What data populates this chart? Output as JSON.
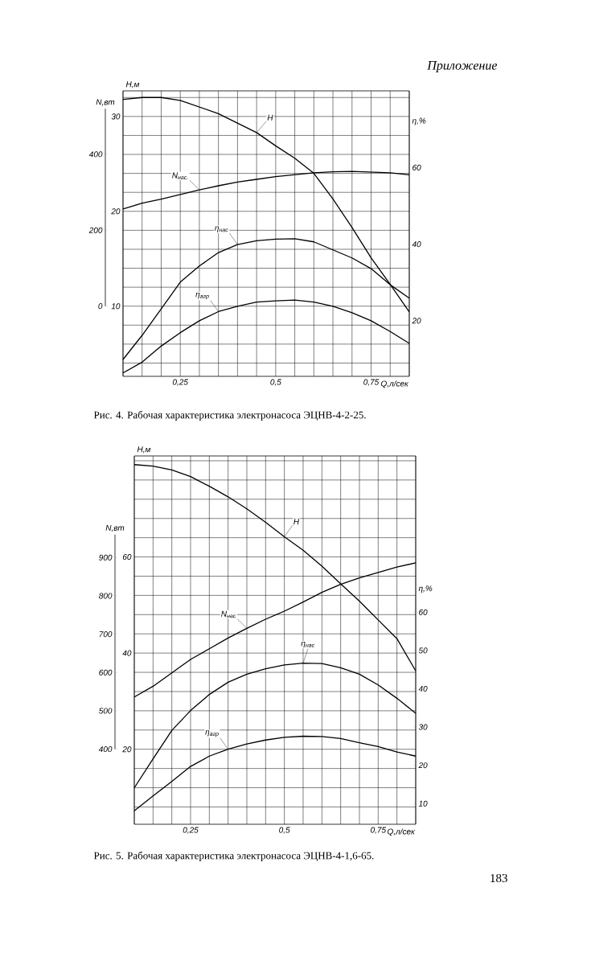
{
  "chart_data": [
    {
      "type": "line",
      "title": "Рис. 4. Рабочая характеристика электронасоса ЭЦНВ-4-2-25.",
      "xlabel": "Q,л/сек",
      "ylabel": "H,м",
      "y2label": "η,%",
      "y3label": "N,вт",
      "annotations": [
        "Приложение"
      ],
      "grid": true,
      "marker": "none",
      "line_style": "solid",
      "x": [
        0.1,
        0.15,
        0.2,
        0.25,
        0.3,
        0.35,
        0.4,
        0.45,
        0.5,
        0.55,
        0.6,
        0.65,
        0.7,
        0.75,
        0.8,
        0.85
      ],
      "xlim": [
        0.1,
        0.85
      ],
      "xticks": [
        {
          "value": 0.1,
          "label": null
        },
        {
          "value": 0.15,
          "label": null
        },
        {
          "value": 0.2,
          "label": null
        },
        {
          "value": 0.25,
          "label": "0,25"
        },
        {
          "value": 0.3,
          "label": null
        },
        {
          "value": 0.35,
          "label": null
        },
        {
          "value": 0.4,
          "label": null
        },
        {
          "value": 0.45,
          "label": null
        },
        {
          "value": 0.5,
          "label": "0,5"
        },
        {
          "value": 0.55,
          "label": null
        },
        {
          "value": 0.6,
          "label": null
        },
        {
          "value": 0.65,
          "label": null
        },
        {
          "value": 0.7,
          "label": null
        },
        {
          "value": 0.75,
          "label": "0,75"
        },
        {
          "value": 0.8,
          "label": null
        },
        {
          "value": 0.85,
          "label": null
        }
      ],
      "ylim": [
        2.6,
        32.7
      ],
      "yticks": [
        {
          "value": 4,
          "label": null
        },
        {
          "value": 6,
          "label": null
        },
        {
          "value": 8,
          "label": null
        },
        10,
        {
          "value": 12,
          "label": null
        },
        {
          "value": 14,
          "label": null
        },
        {
          "value": 16,
          "label": null
        },
        {
          "value": 18,
          "label": null
        },
        20,
        {
          "value": 22,
          "label": null
        },
        {
          "value": 24,
          "label": null
        },
        {
          "value": 26,
          "label": null
        },
        {
          "value": 28,
          "label": null
        },
        30,
        {
          "value": 32,
          "label": null
        }
      ],
      "y2lim": [
        5.5,
        80
      ],
      "y2ticks": [
        20,
        40,
        60
      ],
      "y3lim": [
        -185,
        567
      ],
      "y3ticks": [
        0,
        200,
        400
      ],
      "series": [
        {
          "name": "H",
          "color": "#000000",
          "values": [
            31.8,
            32.0,
            32.0,
            31.7,
            31.0,
            30.3,
            29.3,
            28.3,
            26.9,
            25.6,
            24.0,
            21.3,
            18.3,
            15.1,
            12.3,
            9.4
          ]
        },
        {
          "name": "N$_{нас.}$",
          "color": "#000000",
          "axis": "y3",
          "values": [
            256,
            271,
            282,
            294,
            306,
            317,
            327,
            334,
            341,
            346,
            351,
            354,
            355,
            353,
            351,
            346
          ]
        },
        {
          "name": "η$_{нас}$",
          "color": "#000000",
          "axis": "y2",
          "values": [
            9.9,
            16.2,
            23.1,
            30.1,
            34.3,
            37.8,
            39.9,
            40.9,
            41.3,
            41.4,
            40.6,
            38.5,
            36.4,
            33.6,
            29.4,
            25.9
          ]
        },
        {
          "name": "η$_{агр}$",
          "color": "#000000",
          "axis": "y2",
          "values": [
            6.4,
            9.2,
            13.4,
            16.9,
            20.0,
            22.4,
            23.8,
            24.9,
            25.2,
            25.4,
            24.9,
            23.8,
            22.1,
            20.0,
            17.2,
            14.1
          ]
        }
      ]
    },
    {
      "type": "line",
      "title": "Рис. 5. Рабочая характеристика электронасоса ЭЦНВ-4-1,6-65.",
      "xlabel": "Q,л/сек",
      "ylabel": "H,м",
      "y2label": "η,%",
      "y3label": "N,вт",
      "annotations": [
        "183"
      ],
      "grid": true,
      "marker": "none",
      "line_style": "solid",
      "x": [
        0.1,
        0.15,
        0.2,
        0.25,
        0.3,
        0.35,
        0.4,
        0.45,
        0.5,
        0.55,
        0.6,
        0.65,
        0.7,
        0.75,
        0.8,
        0.85
      ],
      "xlim": [
        0.1,
        0.85
      ],
      "xticks": [
        {
          "value": 0.1,
          "label": null
        },
        {
          "value": 0.15,
          "label": null
        },
        {
          "value": 0.2,
          "label": null
        },
        {
          "value": 0.25,
          "label": "0,25"
        },
        {
          "value": 0.3,
          "label": null
        },
        {
          "value": 0.35,
          "label": null
        },
        {
          "value": 0.4,
          "label": null
        },
        {
          "value": 0.45,
          "label": null
        },
        {
          "value": 0.5,
          "label": "0,5"
        },
        {
          "value": 0.55,
          "label": null
        },
        {
          "value": 0.6,
          "label": null
        },
        {
          "value": 0.65,
          "label": null
        },
        {
          "value": 0.7,
          "label": null
        },
        {
          "value": 0.75,
          "label": "0,75"
        },
        {
          "value": 0.8,
          "label": null
        },
        {
          "value": 0.85,
          "label": null
        }
      ],
      "ylim": [
        4.4,
        81
      ],
      "yticks": [
        {
          "value": 8,
          "label": null
        },
        {
          "value": 12,
          "label": null
        },
        {
          "value": 16,
          "label": null
        },
        20,
        {
          "value": 24,
          "label": null
        },
        {
          "value": 28,
          "label": null
        },
        {
          "value": 32,
          "label": null
        },
        {
          "value": 36,
          "label": null
        },
        40,
        {
          "value": 44,
          "label": null
        },
        {
          "value": 48,
          "label": null
        },
        {
          "value": 52,
          "label": null
        },
        {
          "value": 56,
          "label": null
        },
        60,
        {
          "value": 64,
          "label": null
        },
        {
          "value": 68,
          "label": null
        },
        {
          "value": 72,
          "label": null
        },
        {
          "value": 76,
          "label": null
        },
        {
          "value": 80,
          "label": null
        }
      ],
      "y2lim": [
        4.6,
        100.8
      ],
      "y2ticks": [
        10,
        20,
        30,
        40,
        50,
        60
      ],
      "y3lim": [
        204,
        1165
      ],
      "y3ticks": [
        400,
        500,
        600,
        700,
        800,
        900
      ],
      "series": [
        {
          "name": "H",
          "color": "#000000",
          "values": [
            79.2,
            78.9,
            78.1,
            76.7,
            74.7,
            72.5,
            70.0,
            67.2,
            64.2,
            61.4,
            58.1,
            54.4,
            50.8,
            46.9,
            43.0,
            36.3
          ]
        },
        {
          "name": "N$_{нас}$",
          "color": "#000000",
          "axis": "y3",
          "values": [
            536,
            564,
            599,
            634,
            662,
            690,
            715,
            739,
            760,
            784,
            809,
            830,
            847,
            861,
            875,
            886
          ]
        },
        {
          "name": "η$_{нас}$",
          "color": "#000000",
          "axis": "y2",
          "values": [
            14.1,
            21.7,
            29.1,
            34.3,
            38.5,
            41.7,
            43.8,
            45.2,
            46.2,
            46.7,
            46.6,
            45.5,
            43.8,
            41.0,
            37.5,
            33.6
          ]
        },
        {
          "name": "η$_{агр}$",
          "color": "#000000",
          "axis": "y2",
          "values": [
            8.1,
            12.0,
            15.8,
            19.7,
            22.4,
            24.2,
            25.6,
            26.6,
            27.3,
            27.6,
            27.5,
            27.0,
            25.9,
            24.9,
            23.5,
            22.4
          ]
        }
      ]
    }
  ]
}
